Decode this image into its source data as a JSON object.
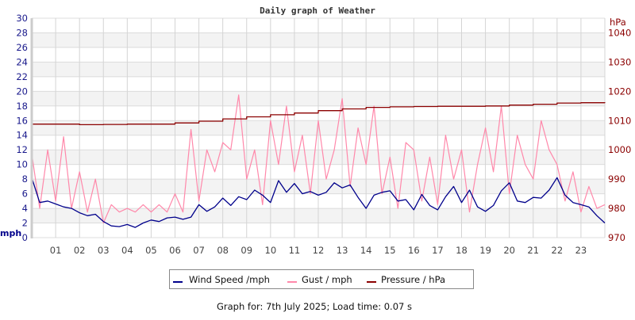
{
  "chart_data": {
    "type": "line",
    "title": "Daily graph of Weather",
    "xlim": [
      0,
      24
    ],
    "x_tick_labels": [
      "01",
      "02",
      "03",
      "04",
      "05",
      "06",
      "07",
      "08",
      "09",
      "10",
      "11",
      "12",
      "13",
      "14",
      "15",
      "16",
      "17",
      "18",
      "19",
      "20",
      "21",
      "22",
      "23"
    ],
    "left_axis": {
      "label": "mph",
      "ylim": [
        0,
        30
      ],
      "ticks": [
        "0",
        "2",
        "4",
        "6",
        "8",
        "10",
        "12",
        "14",
        "16",
        "18",
        "20",
        "22",
        "24",
        "26",
        "28",
        "30"
      ]
    },
    "right_axis": {
      "label": "hPa",
      "ylim": [
        970,
        1045
      ],
      "ticks": [
        "970",
        "980",
        "990",
        "1000",
        "1010",
        "1020",
        "1030",
        "1040"
      ]
    },
    "grid": true,
    "legend_position": "bottom",
    "series": [
      {
        "name": "Wind Speed /mph",
        "axis": "left",
        "color": "#00008b",
        "values": [
          8.2,
          4.8,
          5.0,
          4.6,
          4.2,
          4.0,
          3.4,
          3.0,
          3.2,
          2.2,
          1.6,
          1.5,
          1.8,
          1.4,
          2.0,
          2.4,
          2.2,
          2.7,
          2.8,
          2.5,
          2.8,
          4.5,
          3.6,
          4.2,
          5.4,
          4.4,
          5.6,
          5.2,
          6.5,
          5.8,
          4.8,
          7.8,
          6.2,
          7.4,
          6.0,
          6.3,
          5.8,
          6.2,
          7.5,
          6.8,
          7.2,
          5.5,
          4.0,
          5.8,
          6.2,
          6.4,
          5.0,
          5.2,
          3.8,
          5.9,
          4.4,
          3.8,
          5.6,
          7.0,
          4.8,
          6.5,
          4.2,
          3.6,
          4.4,
          6.4,
          7.5,
          5.0,
          4.8,
          5.5,
          5.4,
          6.5,
          8.2,
          5.8,
          4.8,
          4.5,
          4.2,
          3.0,
          2.0
        ]
      },
      {
        "name": "Gust / mph",
        "axis": "left",
        "color": "#ff88aa",
        "values": [
          11.5,
          4,
          12,
          5,
          13.8,
          4,
          9,
          3.5,
          8,
          2,
          4.5,
          3.5,
          4,
          3.5,
          4.5,
          3.5,
          4.5,
          3.5,
          6,
          3.5,
          14.8,
          5,
          12,
          9,
          13,
          12,
          19.5,
          8,
          12,
          4.5,
          16,
          10,
          18,
          9,
          14,
          6,
          16,
          8,
          12,
          19,
          7,
          15,
          10,
          18,
          6,
          11,
          4,
          13,
          12,
          5,
          11,
          4.5,
          14,
          8,
          12,
          3.5,
          10,
          15,
          9,
          18,
          6,
          14,
          10,
          8,
          16,
          12,
          10,
          5,
          9,
          3.5,
          7,
          4,
          4.5
        ]
      },
      {
        "name": "Pressure / hPa",
        "axis": "right",
        "color": "#8b0000",
        "values": [
          1008.8,
          1008.8,
          1008.6,
          1008.7,
          1008.8,
          1008.8,
          1009.2,
          1009.8,
          1010.6,
          1011.3,
          1012.0,
          1012.6,
          1013.4,
          1014.0,
          1014.5,
          1014.7,
          1014.8,
          1014.9,
          1014.9,
          1015.0,
          1015.3,
          1015.6,
          1016.0,
          1016.1,
          1016.0
        ]
      }
    ]
  },
  "footer": "Graph for: 7th July 2025; Load time: 0.07 s"
}
